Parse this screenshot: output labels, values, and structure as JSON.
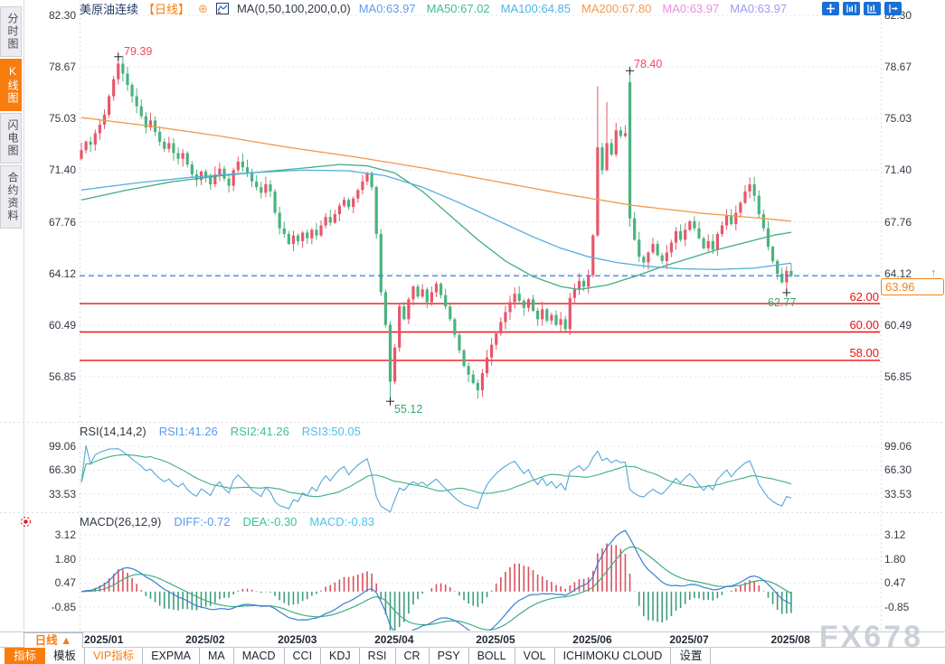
{
  "window": {
    "watermark": "FX678"
  },
  "sidebar": {
    "items": [
      {
        "label": "分时图",
        "active": false
      },
      {
        "label": "K线图",
        "active": true
      },
      {
        "label": "闪电图",
        "active": false
      },
      {
        "label": "合约资料",
        "active": false
      }
    ]
  },
  "header": {
    "symbol": "美原油连续",
    "period": "【日线】",
    "plus_icon": "⊕",
    "ma_params": "MA(0,50,100,200,0,0)",
    "ma_values": [
      {
        "text": "MA0:63.97",
        "color": "#5b9bf0"
      },
      {
        "text": "MA50:67.02",
        "color": "#3fc08e"
      },
      {
        "text": "MA100:64.85",
        "color": "#4db3e8"
      },
      {
        "text": "MA200:67.80",
        "color": "#f5994d"
      },
      {
        "text": "MA0:63.97",
        "color": "#ee8ce2"
      },
      {
        "text": "MA0:63.97",
        "color": "#a09af5"
      }
    ]
  },
  "main_chart": {
    "axis_labels": [
      "82.30",
      "78.67",
      "75.03",
      "71.40",
      "67.76",
      "64.12",
      "60.49",
      "56.85"
    ],
    "level_labels": [
      "62.00",
      "60.00",
      "58.00"
    ],
    "ann_high1": "79.39",
    "ann_high2": "78.40",
    "ann_low1": "55.12",
    "ann_low2": "62.77",
    "last_price_label": "63.96",
    "up_arrow": "↑"
  },
  "rsi_panel": {
    "title": "RSI(14,14,2)",
    "values": [
      {
        "text": "RSI1:41.26",
        "color": "#5b9bf0"
      },
      {
        "text": "RSI2:41.26",
        "color": "#3fc08e"
      },
      {
        "text": "RSI3:50.05",
        "color": "#4fc0e8"
      }
    ],
    "axis_labels": [
      "99.06",
      "66.30",
      "33.53"
    ]
  },
  "macd_panel": {
    "title": "MACD(26,12,9)",
    "values": [
      {
        "text": "DIFF:-0.72",
        "color": "#5b9bf0"
      },
      {
        "text": "DEA:-0.30",
        "color": "#3fc08e"
      },
      {
        "text": "MACD:-0.83",
        "color": "#4fc0e8"
      }
    ],
    "axis_labels": [
      "3.12",
      "1.80",
      "0.47",
      "-0.85"
    ]
  },
  "x_axis": {
    "period_button": "日线 ▲",
    "months": [
      "2025/01",
      "2025/02",
      "2025/03",
      "2025/04",
      "2025/05",
      "2025/06",
      "2025/07",
      "2025/08"
    ]
  },
  "tabs": [
    {
      "label": "指标",
      "active": true,
      "vip": false
    },
    {
      "label": "模板",
      "active": false,
      "vip": false
    },
    {
      "label": "VIP指标",
      "active": false,
      "vip": true
    },
    {
      "label": "EXPMA",
      "active": false,
      "vip": false
    },
    {
      "label": "MA",
      "active": false,
      "vip": false
    },
    {
      "label": "MACD",
      "active": false,
      "vip": false
    },
    {
      "label": "CCI",
      "active": false,
      "vip": false
    },
    {
      "label": "KDJ",
      "active": false,
      "vip": false
    },
    {
      "label": "RSI",
      "active": false,
      "vip": false
    },
    {
      "label": "CR",
      "active": false,
      "vip": false
    },
    {
      "label": "PSY",
      "active": false,
      "vip": false
    },
    {
      "label": "BOLL",
      "active": false,
      "vip": false
    },
    {
      "label": "VOL",
      "active": false,
      "vip": false
    },
    {
      "label": "ICHIMOKU CLOUD",
      "active": false,
      "vip": false
    },
    {
      "label": "设置",
      "active": false,
      "vip": false
    }
  ],
  "chart_data": {
    "type": "candlestick",
    "title": "美原油连续 日线 (WTI crude continuous, daily)",
    "ylim": [
      56.85,
      82.3
    ],
    "y_ticks": [
      82.3,
      78.67,
      75.03,
      71.4,
      67.76,
      64.12,
      60.49,
      56.85
    ],
    "first_open": 72.2,
    "closes": [
      72.8,
      73.4,
      73.2,
      74.0,
      74.6,
      75.3,
      76.6,
      77.8,
      78.9,
      78.2,
      77.4,
      76.6,
      75.9,
      75.2,
      74.4,
      74.9,
      74.1,
      73.4,
      72.9,
      73.3,
      72.6,
      72.2,
      72.6,
      71.8,
      71.1,
      70.7,
      71.3,
      70.9,
      70.4,
      71.1,
      71.5,
      70.8,
      70.3,
      71.4,
      72.0,
      71.6,
      71.2,
      70.6,
      70.2,
      69.8,
      70.4,
      69.9,
      68.4,
      67.3,
      66.9,
      66.2,
      66.8,
      66.4,
      67.0,
      66.6,
      67.2,
      66.8,
      67.5,
      68.1,
      67.7,
      68.3,
      68.9,
      69.3,
      68.8,
      69.4,
      70.0,
      70.6,
      71.2,
      70.2,
      66.9,
      62.8,
      60.5,
      56.5,
      58.9,
      61.8,
      60.9,
      62.3,
      63.2,
      62.5,
      63.0,
      62.1,
      62.8,
      63.4,
      62.6,
      61.8,
      60.9,
      59.8,
      58.7,
      57.6,
      57.0,
      56.4,
      55.9,
      57.1,
      58.2,
      59.1,
      59.9,
      60.7,
      61.4,
      62.1,
      62.7,
      62.2,
      61.7,
      62.3,
      61.5,
      60.9,
      61.6,
      60.8,
      61.2,
      60.5,
      60.9,
      60.2,
      62.4,
      63.0,
      63.6,
      63.2,
      64.0,
      66.8,
      73.0,
      71.4,
      73.3,
      72.5,
      74.2,
      73.8,
      74.0,
      68.0,
      66.5,
      65.3,
      64.9,
      65.6,
      66.2,
      65.4,
      65.0,
      65.6,
      66.3,
      67.1,
      66.5,
      67.2,
      67.8,
      67.3,
      66.6,
      65.9,
      66.4,
      65.8,
      66.9,
      67.5,
      68.2,
      67.6,
      68.4,
      69.1,
      69.9,
      70.4,
      69.6,
      68.3,
      67.3,
      66.0,
      65.0,
      64.1,
      63.5,
      64.3,
      63.96
    ],
    "open_overrides": {
      "119": 77.6
    },
    "high_overrides": {
      "8": 79.39,
      "112": 77.3,
      "114": 76.2,
      "119": 78.4
    },
    "low_overrides": {
      "67": 55.12,
      "86": 55.3,
      "119": 67.4,
      "153": 62.77
    },
    "month_start_days": [
      0,
      22,
      42,
      63,
      85,
      106,
      127,
      149
    ],
    "month_labels": [
      "2025/01",
      "2025/02",
      "2025/03",
      "2025/04",
      "2025/05",
      "2025/06",
      "2025/07",
      "2025/08"
    ],
    "ma_lines": [
      {
        "name": "MA50",
        "color": "#3fae84",
        "points": [
          [
            0,
            69.3
          ],
          [
            10,
            70.0
          ],
          [
            20,
            70.6
          ],
          [
            30,
            71.0
          ],
          [
            40,
            71.3
          ],
          [
            50,
            71.6
          ],
          [
            56,
            71.8
          ],
          [
            62,
            71.7
          ],
          [
            68,
            71.2
          ],
          [
            74,
            69.9
          ],
          [
            80,
            68.2
          ],
          [
            86,
            66.5
          ],
          [
            92,
            65.0
          ],
          [
            98,
            63.9
          ],
          [
            104,
            63.2
          ],
          [
            108,
            63.0
          ],
          [
            114,
            63.3
          ],
          [
            120,
            63.9
          ],
          [
            126,
            64.6
          ],
          [
            132,
            65.2
          ],
          [
            138,
            65.8
          ],
          [
            144,
            66.3
          ],
          [
            150,
            66.8
          ],
          [
            154,
            67.02
          ]
        ]
      },
      {
        "name": "MA100",
        "color": "#57aede",
        "points": [
          [
            0,
            70.0
          ],
          [
            12,
            70.5
          ],
          [
            24,
            70.9
          ],
          [
            36,
            71.2
          ],
          [
            48,
            71.4
          ],
          [
            58,
            71.35
          ],
          [
            66,
            71.0
          ],
          [
            74,
            70.2
          ],
          [
            82,
            69.1
          ],
          [
            90,
            67.9
          ],
          [
            98,
            66.7
          ],
          [
            104,
            65.9
          ],
          [
            110,
            65.3
          ],
          [
            116,
            64.9
          ],
          [
            122,
            64.65
          ],
          [
            130,
            64.45
          ],
          [
            138,
            64.4
          ],
          [
            146,
            64.5
          ],
          [
            154,
            64.85
          ]
        ]
      },
      {
        "name": "MA200",
        "color": "#f2994a",
        "points": [
          [
            0,
            75.1
          ],
          [
            15,
            74.5
          ],
          [
            30,
            73.8
          ],
          [
            45,
            73.0
          ],
          [
            60,
            72.3
          ],
          [
            75,
            71.5
          ],
          [
            90,
            70.6
          ],
          [
            105,
            69.7
          ],
          [
            120,
            68.9
          ],
          [
            135,
            68.35
          ],
          [
            148,
            68.0
          ],
          [
            154,
            67.8
          ]
        ]
      }
    ],
    "support_levels": [
      62.0,
      60.0,
      58.0
    ],
    "last_price": 63.96,
    "annotations": [
      {
        "text": "79.39",
        "day": 8,
        "price": 79.39,
        "kind": "high"
      },
      {
        "text": "78.40",
        "day": 119,
        "price": 78.4,
        "kind": "high"
      },
      {
        "text": "55.12",
        "day": 67,
        "price": 55.12,
        "kind": "low"
      },
      {
        "text": "62.77",
        "day": 153,
        "price": 62.77,
        "kind": "low"
      }
    ],
    "colors": {
      "up": "#e8566b",
      "down": "#4bb27e",
      "level": "#ea1212",
      "last_line": "#2f7fe8"
    },
    "rsi": {
      "title": "RSI(14,14,2)",
      "rsi1": 41.26,
      "rsi2": 41.26,
      "rsi3": 50.05,
      "y_ticks": [
        99.06,
        66.3,
        33.53
      ]
    },
    "macd": {
      "title": "MACD(26,12,9)",
      "diff": -0.72,
      "dea": -0.3,
      "macd": -0.83,
      "y_ticks": [
        3.12,
        1.8,
        0.47,
        -0.85
      ]
    }
  }
}
